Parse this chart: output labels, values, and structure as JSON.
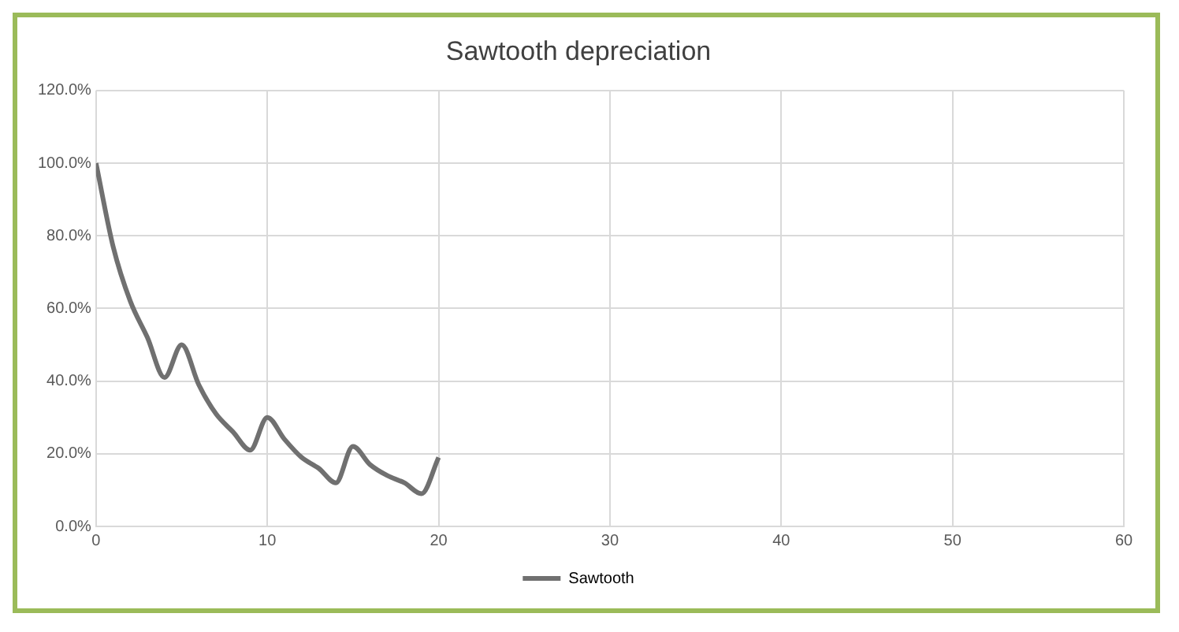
{
  "chart_data": {
    "type": "line",
    "title": "Sawtooth depreciation",
    "x": [
      0,
      1,
      2,
      3,
      4,
      5,
      6,
      7,
      8,
      9,
      10,
      11,
      12,
      13,
      14,
      15,
      16,
      17,
      18,
      19,
      20
    ],
    "series": [
      {
        "name": "Sawtooth",
        "color": "#707070",
        "values": [
          100,
          77,
          62,
          52,
          41,
          50,
          39,
          31,
          26,
          21,
          30,
          24,
          19,
          16,
          12,
          22,
          17,
          14,
          12,
          9,
          19
        ]
      }
    ],
    "xlim": [
      0,
      60
    ],
    "xticks": [
      0,
      10,
      20,
      30,
      40,
      50,
      60
    ],
    "ylim": [
      0,
      120
    ],
    "yticks": [
      {
        "value": 0,
        "label": "0.0%"
      },
      {
        "value": 20,
        "label": "20.0%"
      },
      {
        "value": 40,
        "label": "40.0%"
      },
      {
        "value": 60,
        "label": "60.0%"
      },
      {
        "value": 80,
        "label": "80.0%"
      },
      {
        "value": 100,
        "label": "100.0%"
      },
      {
        "value": 120,
        "label": "120.0%"
      }
    ],
    "grid": true,
    "legend": "bottom",
    "marker": "none",
    "line_style": "solid"
  }
}
